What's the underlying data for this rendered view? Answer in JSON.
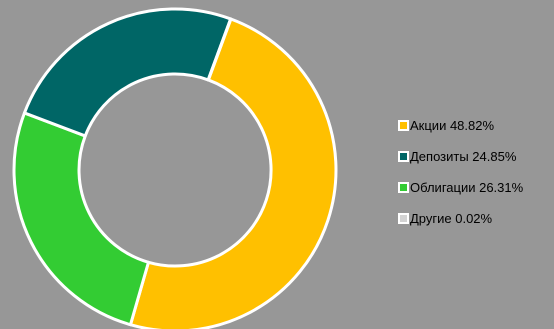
{
  "chart_data": {
    "type": "pie",
    "donut": true,
    "title": "",
    "legend_position": "right",
    "slice_border_color": "#ffffff",
    "slices": [
      {
        "label": "Акции 48.82%",
        "name": "Акции",
        "value": 48.82,
        "color": "#ffc000"
      },
      {
        "label": "Депозиты 24.85%",
        "name": "Депозиты",
        "value": 24.85,
        "color": "#006666"
      },
      {
        "label": "Облигации 26.31%",
        "name": "Облигации",
        "value": 26.31,
        "color": "#33cc33"
      },
      {
        "label": "Другие 0.02%",
        "name": "Другие",
        "value": 0.02,
        "color": "#d3d3d3"
      }
    ]
  }
}
